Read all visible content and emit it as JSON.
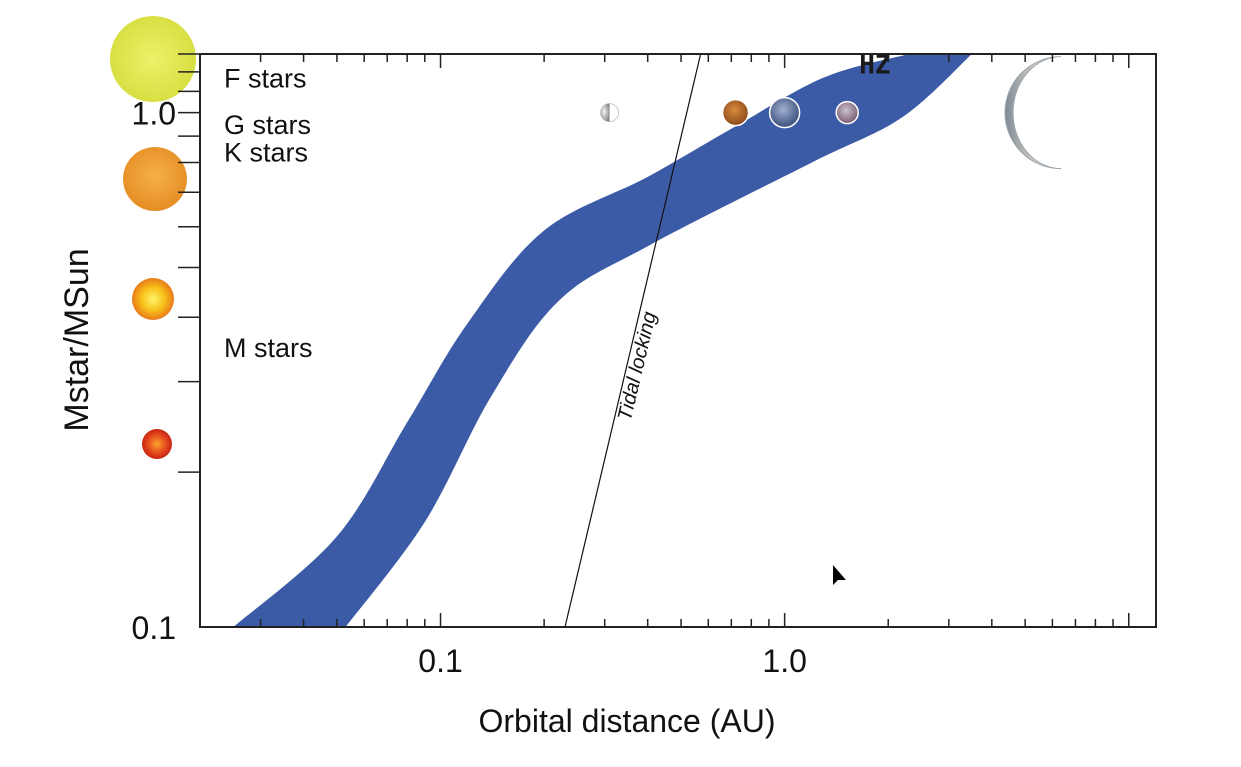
{
  "colors": {
    "zone": "#3b5ba7",
    "axis": "#222222",
    "star_f": "#dde34f",
    "star_g": "#ee9a2e",
    "star_k": "#f5b51c",
    "star_m": "#e0401f"
  },
  "chart_data": {
    "type": "area",
    "xlabel": "Orbital distance (AU)",
    "ylabel": "Mstar/MSun",
    "xscale": "log",
    "yscale": "log",
    "xlim": [
      0.02,
      12
    ],
    "ylim": [
      0.1,
      1.3
    ],
    "xticks": [
      {
        "value": 0.1,
        "label": "0.1"
      },
      {
        "value": 1.0,
        "label": "1.0"
      }
    ],
    "yticks": [
      {
        "value": 0.1,
        "label": "0.1"
      },
      {
        "value": 1.0,
        "label": "1.0"
      }
    ],
    "grid": false,
    "series": [
      {
        "name": "HZ",
        "type": "band",
        "inner_edge": [
          {
            "x": 0.025,
            "y": 0.1
          },
          {
            "x": 0.05,
            "y": 0.15
          },
          {
            "x": 0.08,
            "y": 0.25
          },
          {
            "x": 0.12,
            "y": 0.39
          },
          {
            "x": 0.2,
            "y": 0.59
          },
          {
            "x": 0.4,
            "y": 0.75
          },
          {
            "x": 0.7,
            "y": 0.93
          },
          {
            "x": 1.3,
            "y": 1.17
          },
          {
            "x": 2.3,
            "y": 1.3
          }
        ],
        "outer_edge": [
          {
            "x": 0.053,
            "y": 0.1
          },
          {
            "x": 0.09,
            "y": 0.16
          },
          {
            "x": 0.14,
            "y": 0.28
          },
          {
            "x": 0.22,
            "y": 0.43
          },
          {
            "x": 0.4,
            "y": 0.55
          },
          {
            "x": 1.2,
            "y": 0.8
          },
          {
            "x": 2.2,
            "y": 0.98
          },
          {
            "x": 3.5,
            "y": 1.3
          }
        ]
      },
      {
        "name": "Tidal locking",
        "type": "line",
        "points": [
          {
            "x": 0.23,
            "y": 0.1
          },
          {
            "x": 0.57,
            "y": 1.3
          }
        ]
      }
    ],
    "annotations": [
      {
        "text": "F stars",
        "y": 1.17
      },
      {
        "text": "G stars",
        "y": 0.95
      },
      {
        "text": "K stars",
        "y": 0.84
      },
      {
        "text": "M stars",
        "y": 0.35
      },
      {
        "text": "HZ",
        "x": 1.6,
        "y": 1.15
      },
      {
        "text": "Tidal locking",
        "x": 0.45,
        "y": 0.3
      }
    ],
    "planets": [
      {
        "name": "Mercury",
        "x": 0.31,
        "y": 1.0
      },
      {
        "name": "Venus",
        "x": 0.72,
        "y": 1.0
      },
      {
        "name": "Earth",
        "x": 1.0,
        "y": 1.0
      },
      {
        "name": "Mars",
        "x": 1.52,
        "y": 1.0
      },
      {
        "name": "Jupiter",
        "x": 5.2,
        "y": 1.0
      }
    ]
  }
}
